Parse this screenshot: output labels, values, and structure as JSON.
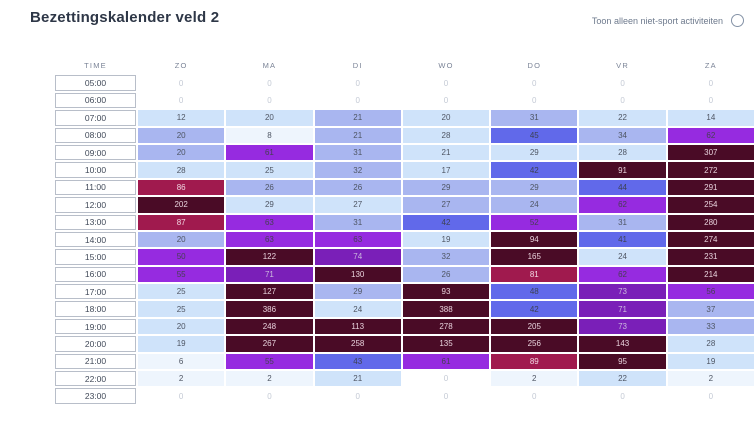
{
  "page": {
    "title": "Bezettingskalender veld 2"
  },
  "toggle": {
    "label": "Toon alleen niet-sport activiteiten"
  },
  "palette": {
    "levels": [
      {
        "bg": "#ffffff",
        "text": "#c4cad5"
      },
      {
        "bg": "#eef5fd",
        "text": "#4e5563"
      },
      {
        "bg": "#cfe3fa",
        "text": "#4e5563"
      },
      {
        "bg": "#a9b6f0",
        "text": "#4e5563"
      },
      {
        "bg": "#6169ea",
        "text": "#3d4152"
      },
      {
        "bg": "#962be0",
        "text": "#463f52"
      },
      {
        "bg": "#7a1fb8",
        "text": "#cbb8dd"
      },
      {
        "bg": "#a01a4e",
        "text": "#f1d7e2"
      },
      {
        "bg": "#4a0b26",
        "text": "#e8d2dc"
      }
    ]
  },
  "table": {
    "time_header": "TIME",
    "day_headers": [
      "ZO",
      "MA",
      "DI",
      "WO",
      "DO",
      "VR",
      "ZA"
    ],
    "rows": [
      {
        "time": "05:00",
        "cells": [
          {
            "v": 0,
            "l": 0
          },
          {
            "v": 0,
            "l": 0
          },
          {
            "v": 0,
            "l": 0
          },
          {
            "v": 0,
            "l": 0
          },
          {
            "v": 0,
            "l": 0
          },
          {
            "v": 0,
            "l": 0
          },
          {
            "v": 0,
            "l": 0
          }
        ]
      },
      {
        "time": "06:00",
        "cells": [
          {
            "v": 0,
            "l": 0
          },
          {
            "v": 0,
            "l": 0
          },
          {
            "v": 0,
            "l": 0
          },
          {
            "v": 0,
            "l": 0
          },
          {
            "v": 0,
            "l": 0
          },
          {
            "v": 0,
            "l": 0
          },
          {
            "v": 0,
            "l": 0
          }
        ]
      },
      {
        "time": "07:00",
        "cells": [
          {
            "v": 12,
            "l": 2
          },
          {
            "v": 20,
            "l": 2
          },
          {
            "v": 21,
            "l": 3
          },
          {
            "v": 20,
            "l": 2
          },
          {
            "v": 31,
            "l": 3
          },
          {
            "v": 22,
            "l": 2
          },
          {
            "v": 14,
            "l": 2
          }
        ]
      },
      {
        "time": "08:00",
        "cells": [
          {
            "v": 20,
            "l": 3
          },
          {
            "v": 8,
            "l": 1
          },
          {
            "v": 21,
            "l": 3
          },
          {
            "v": 28,
            "l": 2
          },
          {
            "v": 45,
            "l": 4
          },
          {
            "v": 34,
            "l": 3
          },
          {
            "v": 62,
            "l": 5
          }
        ]
      },
      {
        "time": "09:00",
        "cells": [
          {
            "v": 20,
            "l": 3
          },
          {
            "v": 61,
            "l": 5
          },
          {
            "v": 31,
            "l": 3
          },
          {
            "v": 21,
            "l": 2
          },
          {
            "v": 29,
            "l": 2
          },
          {
            "v": 28,
            "l": 2
          },
          {
            "v": 307,
            "l": 8
          }
        ]
      },
      {
        "time": "10:00",
        "cells": [
          {
            "v": 28,
            "l": 2
          },
          {
            "v": 25,
            "l": 2
          },
          {
            "v": 32,
            "l": 3
          },
          {
            "v": 17,
            "l": 2
          },
          {
            "v": 42,
            "l": 4
          },
          {
            "v": 91,
            "l": 8
          },
          {
            "v": 272,
            "l": 8
          }
        ]
      },
      {
        "time": "11:00",
        "cells": [
          {
            "v": 86,
            "l": 7
          },
          {
            "v": 26,
            "l": 3
          },
          {
            "v": 26,
            "l": 3
          },
          {
            "v": 29,
            "l": 3
          },
          {
            "v": 29,
            "l": 3
          },
          {
            "v": 44,
            "l": 4
          },
          {
            "v": 291,
            "l": 8
          }
        ]
      },
      {
        "time": "12:00",
        "cells": [
          {
            "v": 202,
            "l": 8
          },
          {
            "v": 29,
            "l": 2
          },
          {
            "v": 27,
            "l": 2
          },
          {
            "v": 27,
            "l": 3
          },
          {
            "v": 24,
            "l": 3
          },
          {
            "v": 62,
            "l": 5
          },
          {
            "v": 254,
            "l": 8
          }
        ]
      },
      {
        "time": "13:00",
        "cells": [
          {
            "v": 87,
            "l": 7
          },
          {
            "v": 63,
            "l": 5
          },
          {
            "v": 31,
            "l": 3
          },
          {
            "v": 42,
            "l": 4
          },
          {
            "v": 52,
            "l": 5
          },
          {
            "v": 31,
            "l": 3
          },
          {
            "v": 280,
            "l": 8
          }
        ]
      },
      {
        "time": "14:00",
        "cells": [
          {
            "v": 20,
            "l": 3
          },
          {
            "v": 63,
            "l": 5
          },
          {
            "v": 63,
            "l": 5
          },
          {
            "v": 19,
            "l": 2
          },
          {
            "v": 94,
            "l": 8
          },
          {
            "v": 41,
            "l": 4
          },
          {
            "v": 274,
            "l": 8
          }
        ]
      },
      {
        "time": "15:00",
        "cells": [
          {
            "v": 50,
            "l": 5
          },
          {
            "v": 122,
            "l": 8
          },
          {
            "v": 74,
            "l": 6
          },
          {
            "v": 32,
            "l": 3
          },
          {
            "v": 165,
            "l": 8
          },
          {
            "v": 24,
            "l": 2
          },
          {
            "v": 231,
            "l": 8
          }
        ]
      },
      {
        "time": "16:00",
        "cells": [
          {
            "v": 55,
            "l": 5
          },
          {
            "v": 71,
            "l": 6
          },
          {
            "v": 130,
            "l": 8
          },
          {
            "v": 26,
            "l": 3
          },
          {
            "v": 81,
            "l": 7
          },
          {
            "v": 62,
            "l": 5
          },
          {
            "v": 214,
            "l": 8
          }
        ]
      },
      {
        "time": "17:00",
        "cells": [
          {
            "v": 25,
            "l": 2
          },
          {
            "v": 127,
            "l": 8
          },
          {
            "v": 29,
            "l": 3
          },
          {
            "v": 93,
            "l": 8
          },
          {
            "v": 48,
            "l": 4
          },
          {
            "v": 73,
            "l": 6
          },
          {
            "v": 56,
            "l": 5
          }
        ]
      },
      {
        "time": "18:00",
        "cells": [
          {
            "v": 25,
            "l": 2
          },
          {
            "v": 386,
            "l": 8
          },
          {
            "v": 24,
            "l": 2
          },
          {
            "v": 388,
            "l": 8
          },
          {
            "v": 42,
            "l": 4
          },
          {
            "v": 71,
            "l": 6
          },
          {
            "v": 37,
            "l": 3
          }
        ]
      },
      {
        "time": "19:00",
        "cells": [
          {
            "v": 20,
            "l": 2
          },
          {
            "v": 248,
            "l": 8
          },
          {
            "v": 113,
            "l": 8
          },
          {
            "v": 278,
            "l": 8
          },
          {
            "v": 205,
            "l": 8
          },
          {
            "v": 73,
            "l": 6
          },
          {
            "v": 33,
            "l": 3
          }
        ]
      },
      {
        "time": "20:00",
        "cells": [
          {
            "v": 19,
            "l": 2
          },
          {
            "v": 267,
            "l": 8
          },
          {
            "v": 258,
            "l": 8
          },
          {
            "v": 135,
            "l": 8
          },
          {
            "v": 256,
            "l": 8
          },
          {
            "v": 143,
            "l": 8
          },
          {
            "v": 28,
            "l": 2
          }
        ]
      },
      {
        "time": "21:00",
        "cells": [
          {
            "v": 6,
            "l": 1
          },
          {
            "v": 55,
            "l": 5
          },
          {
            "v": 43,
            "l": 4
          },
          {
            "v": 61,
            "l": 5
          },
          {
            "v": 89,
            "l": 7
          },
          {
            "v": 95,
            "l": 8
          },
          {
            "v": 19,
            "l": 2
          }
        ]
      },
      {
        "time": "22:00",
        "cells": [
          {
            "v": 2,
            "l": 1
          },
          {
            "v": 2,
            "l": 1
          },
          {
            "v": 21,
            "l": 2
          },
          {
            "v": 0,
            "l": 0
          },
          {
            "v": 2,
            "l": 1
          },
          {
            "v": 22,
            "l": 2
          },
          {
            "v": 2,
            "l": 1
          }
        ]
      },
      {
        "time": "23:00",
        "cells": [
          {
            "v": 0,
            "l": 0
          },
          {
            "v": 0,
            "l": 0
          },
          {
            "v": 0,
            "l": 0
          },
          {
            "v": 0,
            "l": 0
          },
          {
            "v": 0,
            "l": 0
          },
          {
            "v": 0,
            "l": 0
          },
          {
            "v": 0,
            "l": 0
          }
        ]
      }
    ]
  },
  "chart_data": {
    "type": "heatmap",
    "title": "Bezettingskalender veld 2",
    "x": [
      "ZO",
      "MA",
      "DI",
      "WO",
      "DO",
      "VR",
      "ZA"
    ],
    "y": [
      "05:00",
      "06:00",
      "07:00",
      "08:00",
      "09:00",
      "10:00",
      "11:00",
      "12:00",
      "13:00",
      "14:00",
      "15:00",
      "16:00",
      "17:00",
      "18:00",
      "19:00",
      "20:00",
      "21:00",
      "22:00",
      "23:00"
    ],
    "values": [
      [
        0,
        0,
        0,
        0,
        0,
        0,
        0
      ],
      [
        0,
        0,
        0,
        0,
        0,
        0,
        0
      ],
      [
        12,
        20,
        21,
        20,
        31,
        22,
        14
      ],
      [
        20,
        8,
        21,
        28,
        45,
        34,
        62
      ],
      [
        20,
        61,
        31,
        21,
        29,
        28,
        307
      ],
      [
        28,
        25,
        32,
        17,
        42,
        91,
        272
      ],
      [
        86,
        26,
        26,
        29,
        29,
        44,
        291
      ],
      [
        202,
        29,
        27,
        27,
        24,
        62,
        254
      ],
      [
        87,
        63,
        31,
        42,
        52,
        31,
        280
      ],
      [
        20,
        63,
        63,
        19,
        94,
        41,
        274
      ],
      [
        50,
        122,
        74,
        32,
        165,
        24,
        231
      ],
      [
        55,
        71,
        130,
        26,
        81,
        62,
        214
      ],
      [
        25,
        127,
        29,
        93,
        48,
        73,
        56
      ],
      [
        25,
        386,
        24,
        388,
        42,
        71,
        37
      ],
      [
        20,
        248,
        113,
        278,
        205,
        73,
        33
      ],
      [
        19,
        267,
        258,
        135,
        256,
        143,
        28
      ],
      [
        6,
        55,
        43,
        61,
        89,
        95,
        19
      ],
      [
        2,
        2,
        21,
        0,
        2,
        22,
        2
      ],
      [
        0,
        0,
        0,
        0,
        0,
        0,
        0
      ]
    ]
  }
}
